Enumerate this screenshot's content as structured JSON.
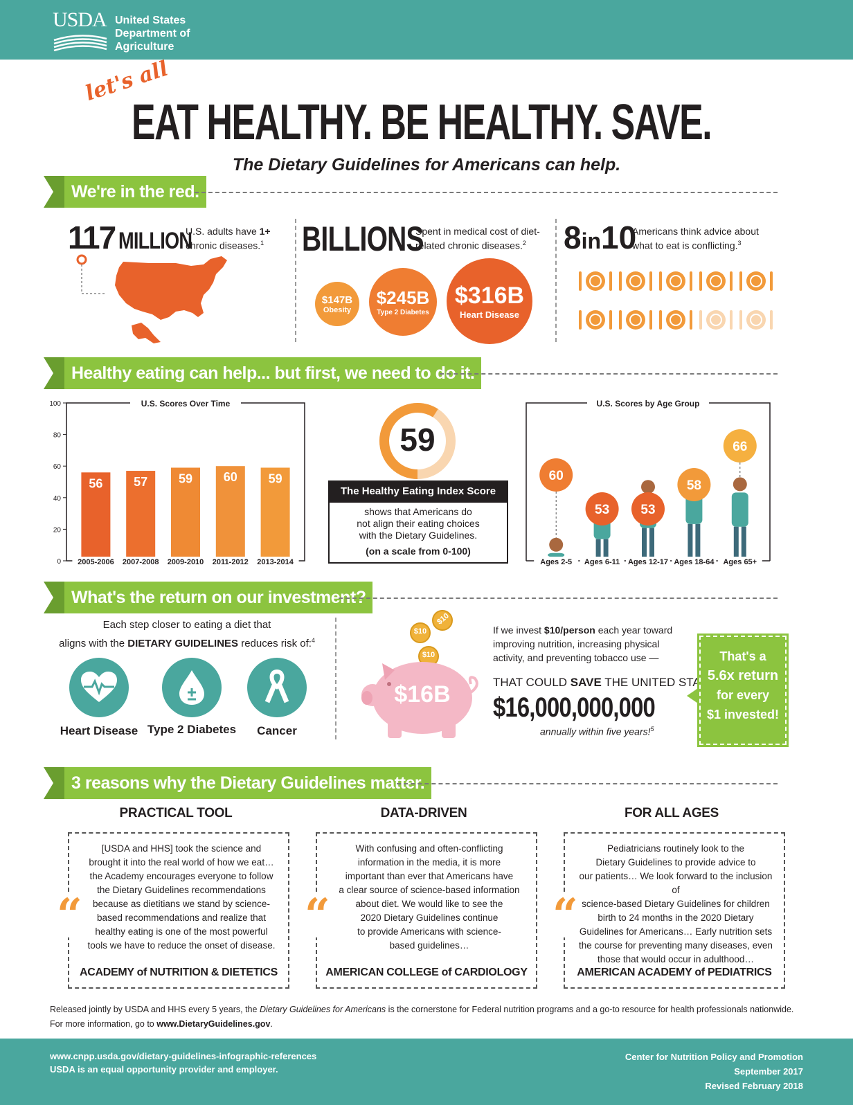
{
  "header": {
    "logo_text": "USDA",
    "org_line1": "United States",
    "org_line2": "Department of",
    "org_line3": "Agriculture"
  },
  "title": {
    "script": "let's all",
    "main": "EAT HEALTHY. BE HEALTHY. SAVE.",
    "subtitle": "The Dietary Guidelines for Americans can help."
  },
  "section1": {
    "banner": "We're in the red.",
    "stat1": {
      "number": "117",
      "unit": "MILLION",
      "text_a": "U.S. adults have ",
      "text_bold": "1+",
      "text_b": "chronic diseases.",
      "sup": "1"
    },
    "stat2": {
      "number": "BILLIONS",
      "text_a": "Spent in medical cost of diet-",
      "text_b": "related chronic diseases.",
      "sup": "2"
    },
    "costs": [
      {
        "value": "$147B",
        "label": "Obesity"
      },
      {
        "value": "$245B",
        "label": "Type 2 Diabetes"
      },
      {
        "value": "$316B",
        "label": "Heart Disease"
      }
    ],
    "stat3": {
      "number": "8",
      "mid": "in",
      "number2": "10",
      "text_a": "Americans think advice about",
      "text_b": "what to eat is conflicting.",
      "sup": "3"
    },
    "plates_total": 10,
    "plates_filled": 8,
    "colors": {
      "orange": "#e8622b",
      "mid_orange": "#ef7d32",
      "light_orange": "#f29a3a",
      "pale": "#f9d6b0"
    }
  },
  "section2": {
    "banner": "Healthy eating can help... but first, we need to do it.",
    "chart_data": [
      {
        "type": "bar",
        "title": "U.S. Scores Over Time",
        "categories": [
          "2005-2006",
          "2007-2008",
          "2009-2010",
          "2011-2012",
          "2013-2014"
        ],
        "values": [
          56,
          57,
          59,
          60,
          59
        ],
        "ylim": [
          0,
          100
        ],
        "yticks": [
          0,
          20,
          40,
          60,
          80,
          100
        ],
        "colors": [
          "#e8622b",
          "#ec6f2e",
          "#ef8a34",
          "#f0923a",
          "#f29a3a"
        ]
      },
      {
        "type": "bar",
        "title": "U.S. Scores by Age Group",
        "categories": [
          "Ages 2-5",
          "Ages 6-11",
          "Ages 12-17",
          "Ages 18-64",
          "Ages 65+"
        ],
        "values": [
          60,
          53,
          53,
          58,
          66
        ],
        "colors": [
          "#ef7d32",
          "#e8622b",
          "#e8622b",
          "#f29a3a",
          "#f5b040"
        ]
      }
    ],
    "hei": {
      "score": "59",
      "score_value": 59,
      "title": "The Healthy Eating Index Score",
      "text1": "shows that Americans do",
      "text2": "not align their eating choices",
      "text3": "with the Dietary Guidelines.",
      "scale": "(on a scale from 0-100)"
    }
  },
  "section3": {
    "banner": "What's the return on our investment?",
    "intro1": "Each step closer to eating a diet that",
    "intro2a": "aligns with the ",
    "intro2b": "DIETARY GUIDELINES",
    "intro2c": " reduces risk of:",
    "sup": "4",
    "risks": [
      "Heart Disease",
      "Type 2 Diabetes",
      "Cancer"
    ],
    "coin_label": "$10",
    "pig_label": "$16B",
    "invest1a": "If we invest ",
    "invest1b": "$10/person",
    "invest1c": " each year toward",
    "invest2": "improving nutrition, increasing physical",
    "invest3": "activity, and preventing tobacco use —",
    "save_a": "THAT COULD ",
    "save_b": "SAVE",
    "save_c": " THE UNITED STATES",
    "big_amount": "$16,000,000,000",
    "annually": "annually within five years!",
    "sup5": "5",
    "ret1": "That's a",
    "ret2": "5.6x return",
    "ret3": "for every",
    "ret4": "$1 invested!"
  },
  "section4": {
    "banner": "3 reasons why the Dietary Guidelines matter.",
    "reasons": [
      {
        "title": "PRACTICAL TOOL",
        "lines": [
          "[USDA and HHS] took the science and",
          "brought it into the real world of how we eat…",
          "the Academy encourages everyone to follow",
          "the Dietary Guidelines recommendations",
          "because as dietitians we stand by science-",
          "based recommendations and realize that",
          "healthy eating is one of the most powerful",
          "tools we have to reduce the onset of disease."
        ],
        "source": "ACADEMY of NUTRITION & DIETETICS"
      },
      {
        "title": "DATA-DRIVEN",
        "lines": [
          "With confusing and often-conflicting",
          "information in the media, it is more",
          "important than ever that Americans have",
          "a clear source of science-based information",
          "about diet. We would like to see the",
          "2020 Dietary Guidelines continue",
          "to provide Americans with science-",
          "based guidelines…"
        ],
        "source": "AMERICAN COLLEGE of CARDIOLOGY"
      },
      {
        "title": "FOR ALL AGES",
        "lines": [
          "Pediatricians routinely look to the",
          "Dietary Guidelines to provide advice to",
          "our patients… We look forward to the inclusion of",
          "science-based Dietary Guidelines for children",
          "birth to 24 months in the 2020 Dietary",
          "Guidelines for Americans… Early nutrition sets",
          "the course for preventing many diseases, even",
          "those that would occur in adulthood…"
        ],
        "source": "AMERICAN ACADEMY of PEDIATRICS"
      }
    ],
    "quote_mark": "“"
  },
  "bottom": {
    "line1a": "Released jointly by USDA and HHS every 5 years, the ",
    "line1b": "Dietary Guidelines for Americans",
    "line1c": " is the cornerstone for Federal nutrition programs and a go-to resource for health professionals nationwide.",
    "line2a": "For more information, go to ",
    "line2b": "www.DietaryGuidelines.gov",
    "line2c": "."
  },
  "footer": {
    "url": "www.cnpp.usda.gov/dietary-guidelines-infographic-references",
    "eeo": "USDA is an equal opportunity provider and employer.",
    "center": "Center for Nutrition Policy and Promotion",
    "date": "September 2017",
    "revised": "Revised February 2018"
  }
}
